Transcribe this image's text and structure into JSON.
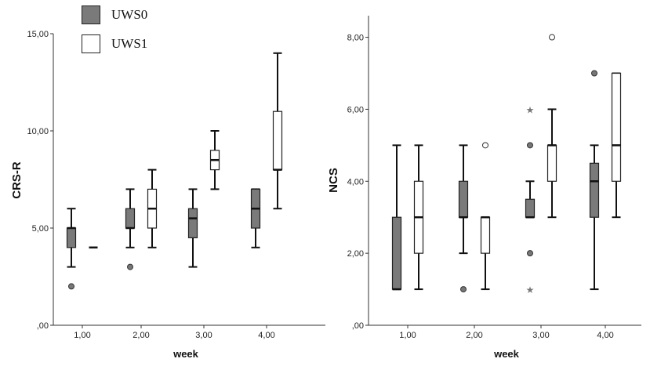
{
  "legend": [
    {
      "label": "UWS0",
      "color": "#7a7a7a"
    },
    {
      "label": "UWS1",
      "color": "#ffffff"
    }
  ],
  "chart_data": [
    {
      "type": "box",
      "ylabel": "CRS-R",
      "xlabel": "week",
      "ylim": [
        0,
        15
      ],
      "yticks": [
        0,
        5,
        10,
        15
      ],
      "ytick_labels": [
        ",00",
        "5,00",
        "10,00",
        "15,00"
      ],
      "xticks": [
        1,
        2,
        3,
        4
      ],
      "xtick_labels": [
        "1,00",
        "2,00",
        "3,00",
        "4,00"
      ],
      "grid": false,
      "series": [
        {
          "name": "UWS0",
          "color": "#7a7a7a",
          "boxes": [
            {
              "x": 1,
              "whislo": 3,
              "q1": 4,
              "med": 5,
              "q3": 5,
              "whishi": 6,
              "outliers": [
                2
              ],
              "extremes": []
            },
            {
              "x": 2,
              "whislo": 4,
              "q1": 5,
              "med": 5,
              "q3": 6,
              "whishi": 7,
              "outliers": [
                3
              ],
              "extremes": []
            },
            {
              "x": 3,
              "whislo": 3,
              "q1": 4.5,
              "med": 5.5,
              "q3": 6,
              "whishi": 7,
              "outliers": [],
              "extremes": []
            },
            {
              "x": 4,
              "whislo": 4,
              "q1": 5,
              "med": 6,
              "q3": 7,
              "whishi": 7,
              "outliers": [],
              "extremes": []
            }
          ]
        },
        {
          "name": "UWS1",
          "color": "#ffffff",
          "boxes": [
            {
              "x": 1,
              "whislo": 4,
              "q1": 4,
              "med": 4,
              "q3": 4,
              "whishi": 4,
              "outliers": [],
              "extremes": []
            },
            {
              "x": 2,
              "whislo": 4,
              "q1": 5,
              "med": 6,
              "q3": 7,
              "whishi": 8,
              "outliers": [],
              "extremes": []
            },
            {
              "x": 3,
              "whislo": 7,
              "q1": 8,
              "med": 8.5,
              "q3": 9,
              "whishi": 10,
              "outliers": [],
              "extremes": []
            },
            {
              "x": 4,
              "whislo": 6,
              "q1": 8,
              "med": 8,
              "q3": 11,
              "whishi": 14,
              "outliers": [],
              "extremes": []
            }
          ]
        }
      ]
    },
    {
      "type": "box",
      "ylabel": "NCS",
      "xlabel": "week",
      "ylim": [
        0,
        8.6
      ],
      "yticks": [
        0,
        2,
        4,
        6,
        8
      ],
      "ytick_labels": [
        ",00",
        "2,00",
        "4,00",
        "6,00",
        "8,00"
      ],
      "xticks": [
        1,
        2,
        3,
        4
      ],
      "xtick_labels": [
        "1,00",
        "2,00",
        "3,00",
        "4,00"
      ],
      "grid": false,
      "series": [
        {
          "name": "UWS0",
          "color": "#7a7a7a",
          "boxes": [
            {
              "x": 1,
              "whislo": 1,
              "q1": 1,
              "med": 1,
              "q3": 3,
              "whishi": 5,
              "outliers": [],
              "extremes": []
            },
            {
              "x": 2,
              "whislo": 2,
              "q1": 3,
              "med": 3,
              "q3": 4,
              "whishi": 5,
              "outliers": [
                1
              ],
              "extremes": []
            },
            {
              "x": 3,
              "whislo": 3,
              "q1": 3,
              "med": 3,
              "q3": 3.5,
              "whishi": 4,
              "outliers": [
                5,
                2
              ],
              "extremes": [
                6,
                1
              ]
            },
            {
              "x": 4,
              "whislo": 1,
              "q1": 3,
              "med": 4,
              "q3": 4.5,
              "whishi": 5,
              "outliers": [
                7
              ],
              "extremes": []
            }
          ]
        },
        {
          "name": "UWS1",
          "color": "#ffffff",
          "boxes": [
            {
              "x": 1,
              "whislo": 1,
              "q1": 2,
              "med": 3,
              "q3": 4,
              "whishi": 5,
              "outliers": [],
              "extremes": []
            },
            {
              "x": 2,
              "whislo": 1,
              "q1": 2,
              "med": 3,
              "q3": 3,
              "whishi": 3,
              "outliers": [
                5
              ],
              "extremes": []
            },
            {
              "x": 3,
              "whislo": 3,
              "q1": 4,
              "med": 5,
              "q3": 5,
              "whishi": 6,
              "outliers": [
                8
              ],
              "extremes": []
            },
            {
              "x": 4,
              "whislo": 3,
              "q1": 4,
              "med": 5,
              "q3": 7,
              "whishi": 7,
              "outliers": [],
              "extremes": []
            }
          ]
        }
      ]
    }
  ]
}
